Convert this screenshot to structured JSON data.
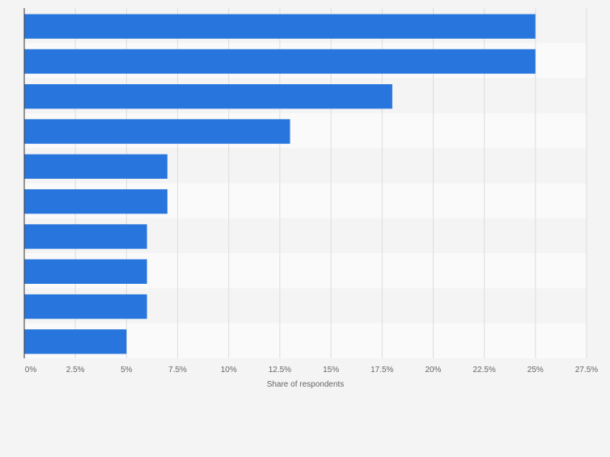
{
  "chart_data": {
    "type": "bar",
    "orientation": "horizontal",
    "title": "",
    "xlabel": "Share of respondents",
    "ylabel": "",
    "unit": "%",
    "xlim": [
      0,
      27.5
    ],
    "x_ticks": [
      0,
      2.5,
      5,
      7.5,
      10,
      12.5,
      15,
      17.5,
      20,
      22.5,
      25,
      27.5
    ],
    "x_tick_labels": [
      "0%",
      "2.5%",
      "5%",
      "7.5%",
      "10%",
      "12.5%",
      "15%",
      "17.5%",
      "20%",
      "22.5%",
      "25%",
      "27.5%"
    ],
    "categories": [
      "",
      "",
      "",
      "",
      "",
      "",
      "",
      "",
      "",
      ""
    ],
    "values": [
      25,
      25,
      18,
      13,
      7,
      7,
      6,
      6,
      6,
      5
    ],
    "grid": true,
    "legend": "none",
    "colors": {
      "bar": "#2876dd",
      "background": "#f4f4f4",
      "band_light": "#fafafa",
      "band_dark": "#f4f4f4",
      "grid": "#dcdcdc",
      "axis": "#333333",
      "text": "#666666"
    }
  }
}
